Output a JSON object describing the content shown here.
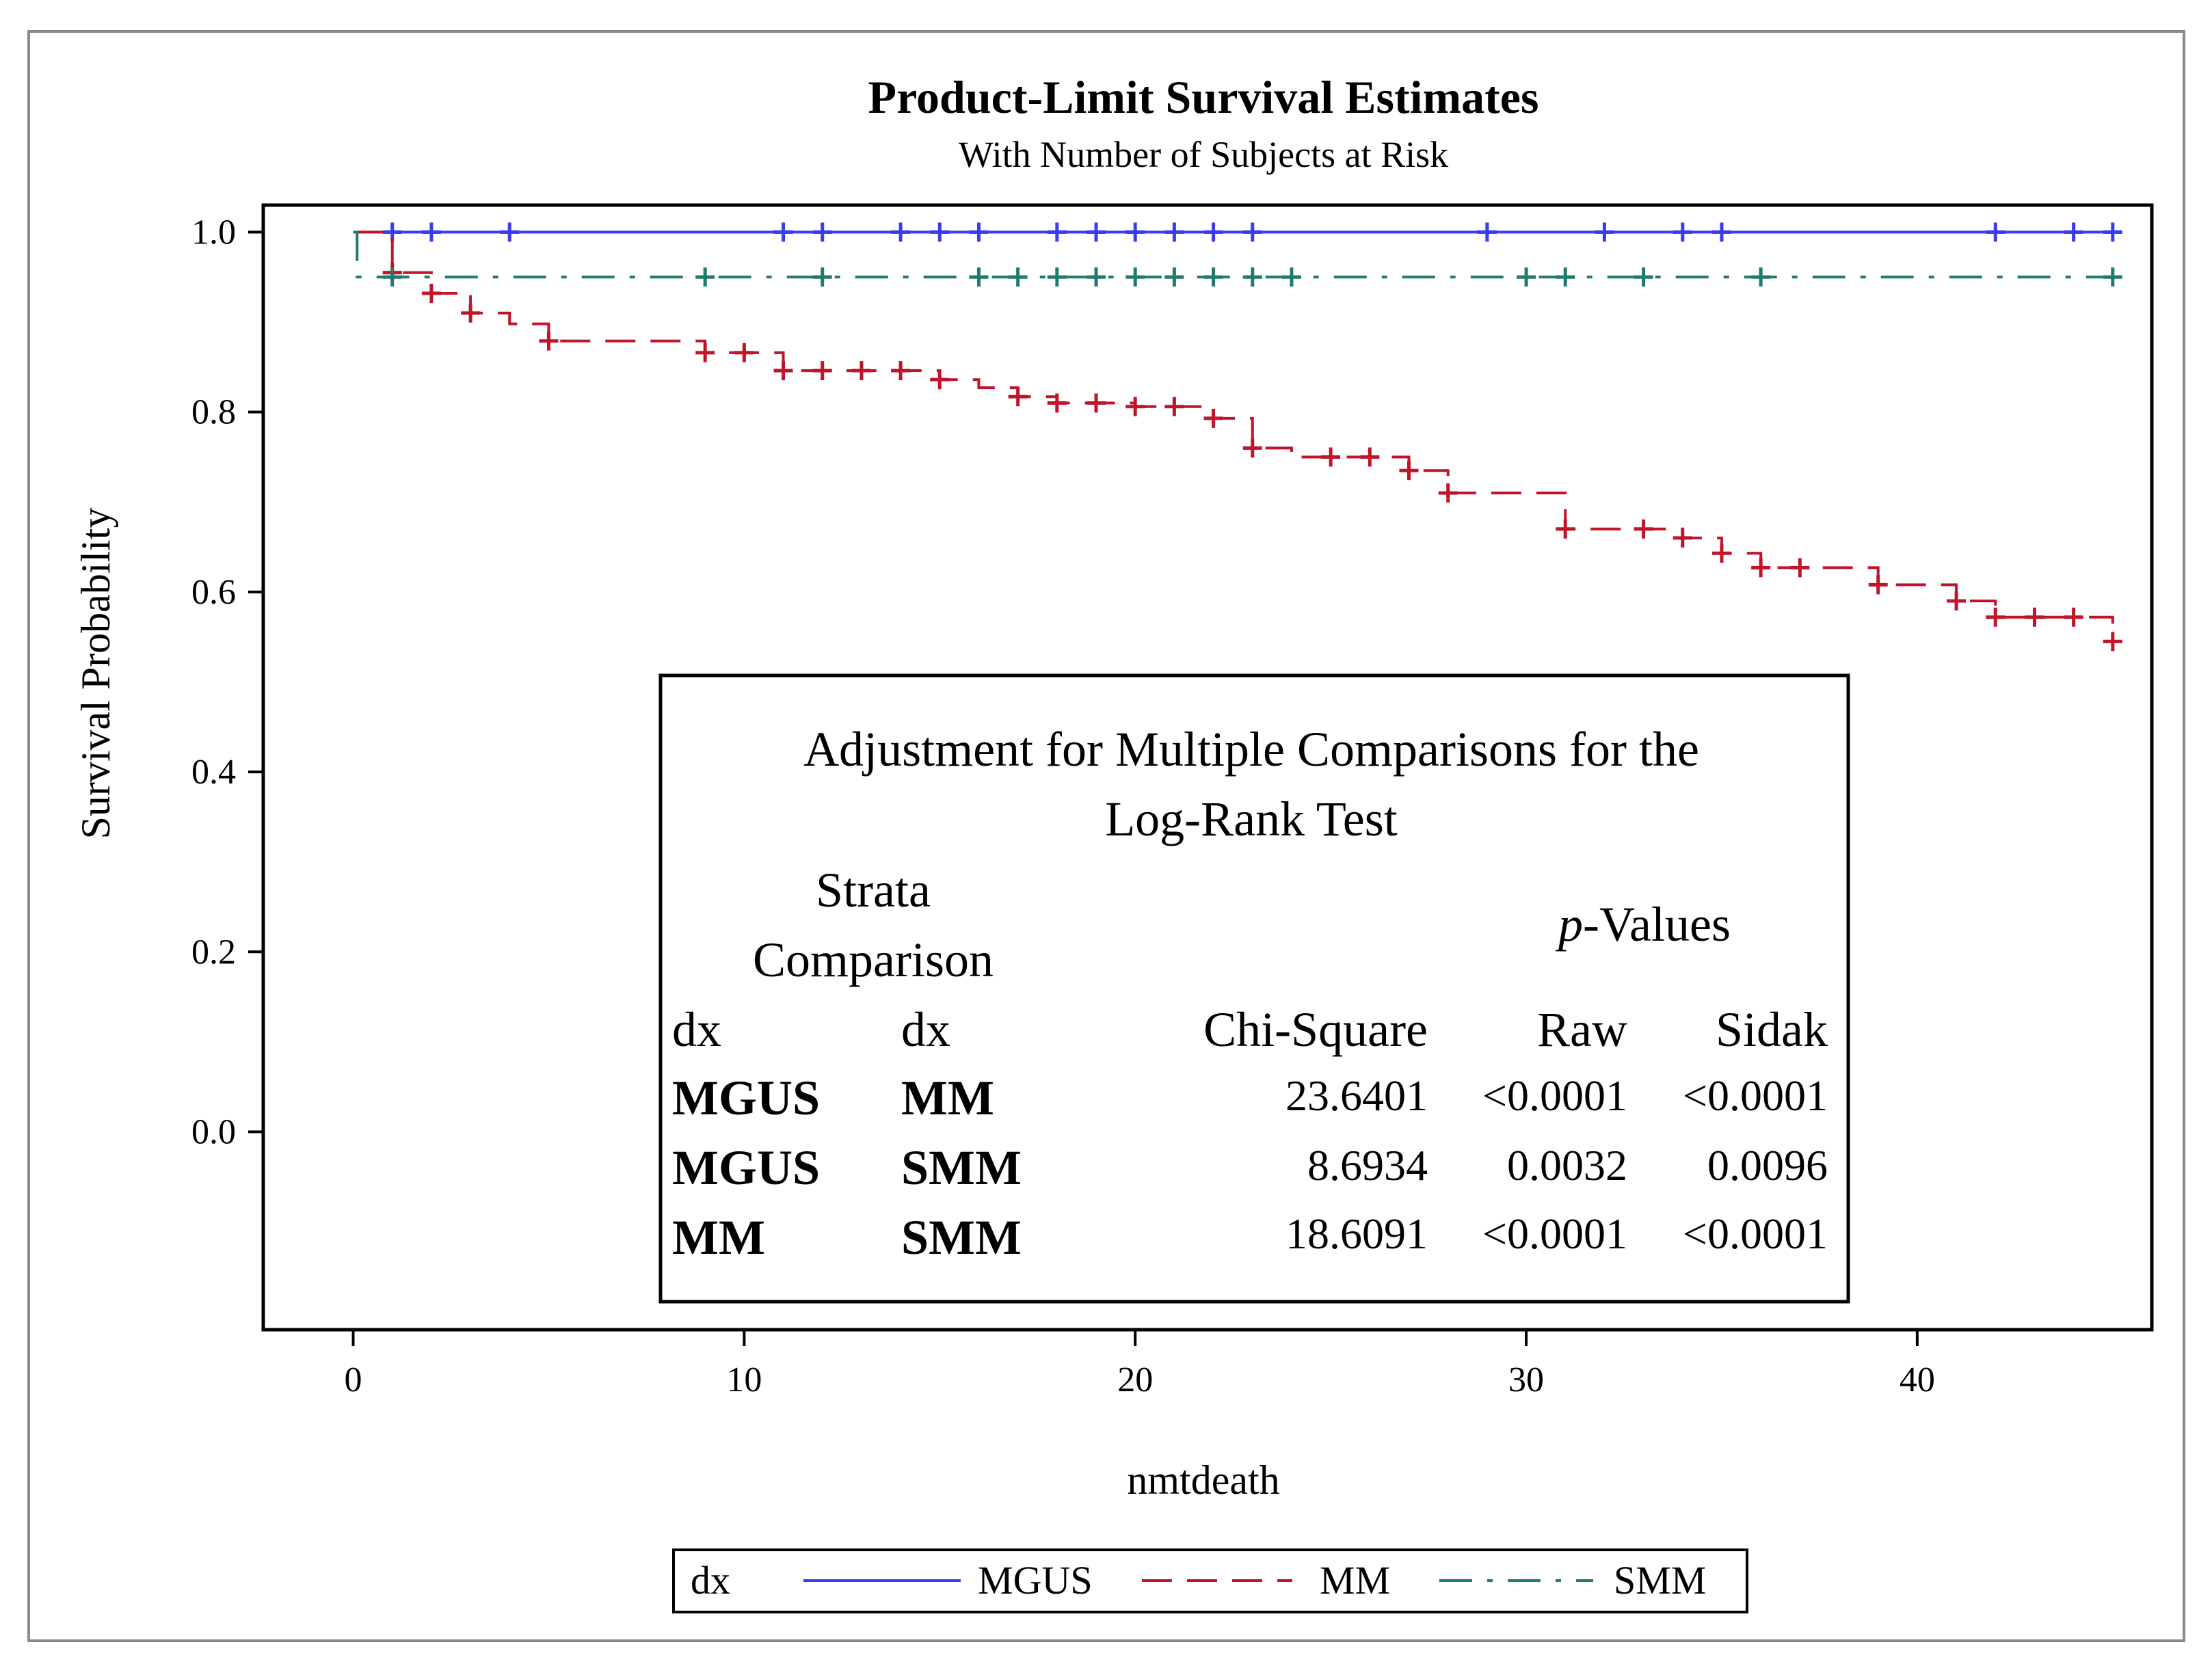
{
  "chart_data": {
    "type": "line",
    "subtype": "step",
    "title": "Product-Limit Survival Estimates",
    "subtitle": "With Number of Subjects at Risk",
    "xlabel": "nmtdeath",
    "ylabel": "Survival Probability",
    "xlim": [
      -2.3,
      46
    ],
    "ylim": [
      -0.22,
      1.03
    ],
    "xticks": [
      0,
      10,
      20,
      30,
      40
    ],
    "yticks": [
      0.0,
      0.2,
      0.4,
      0.6,
      0.8,
      1.0
    ],
    "xtick_labels": [
      "0",
      "10",
      "20",
      "30",
      "40"
    ],
    "ytick_labels": [
      "0.0",
      "0.2",
      "0.4",
      "0.6",
      "0.8",
      "1.0"
    ],
    "grid": false,
    "series": [
      {
        "name": "MGUS",
        "color": "#3b3bf0",
        "dash": "solid",
        "steps": [
          [
            0,
            1.0
          ],
          [
            45,
            1.0
          ]
        ],
        "censor_x": [
          1,
          2,
          4,
          11,
          12,
          14,
          15,
          16,
          18,
          19,
          20,
          21,
          22,
          23,
          29,
          32,
          34,
          35,
          42,
          44,
          45
        ]
      },
      {
        "name": "MM",
        "color": "#c0142a",
        "dash": "dashed",
        "steps": [
          [
            0,
            1.0
          ],
          [
            1,
            0.955
          ],
          [
            2,
            0.932
          ],
          [
            3,
            0.91
          ],
          [
            4,
            0.898
          ],
          [
            5,
            0.879
          ],
          [
            9,
            0.866
          ],
          [
            11,
            0.846
          ],
          [
            15,
            0.836
          ],
          [
            16,
            0.827
          ],
          [
            17,
            0.817
          ],
          [
            18,
            0.81
          ],
          [
            20,
            0.806
          ],
          [
            22,
            0.793
          ],
          [
            23,
            0.76
          ],
          [
            24,
            0.75
          ],
          [
            27,
            0.735
          ],
          [
            28,
            0.71
          ],
          [
            31,
            0.67
          ],
          [
            34,
            0.66
          ],
          [
            35,
            0.643
          ],
          [
            36,
            0.627
          ],
          [
            39,
            0.608
          ],
          [
            41,
            0.59
          ],
          [
            42,
            0.572
          ],
          [
            45,
            0.545
          ]
        ],
        "censor_x": [
          1,
          2,
          3,
          5,
          9,
          10,
          11,
          12,
          13,
          14,
          15,
          17,
          18,
          19,
          20,
          21,
          22,
          23,
          25,
          26,
          27,
          28,
          31,
          33,
          34,
          35,
          36,
          37,
          39,
          41,
          42,
          43,
          44,
          45
        ]
      },
      {
        "name": "SMM",
        "color": "#207a70",
        "dash": "dashdot",
        "steps": [
          [
            0,
            1.0
          ],
          [
            0.1,
            0.95
          ],
          [
            45,
            0.95
          ]
        ],
        "censor_x": [
          1,
          9,
          12,
          16,
          17,
          18,
          19,
          20,
          21,
          22,
          23,
          24,
          30,
          31,
          33,
          36,
          45
        ]
      }
    ],
    "inset_table": {
      "title_line1": "Adjustment  for Multiple Comparisons for the",
      "title_line2": "Log-Rank Test",
      "group_header_line1": "Strata",
      "group_header_line2": "Comparison",
      "pvalues_italic": "p",
      "pvalues_rest": "-Values",
      "columns": [
        "dx",
        "dx",
        "Chi-Square",
        "Raw",
        "Sidak"
      ],
      "rows": [
        [
          "MGUS",
          "MM",
          "23.6401",
          "<0.0001",
          "<0.0001"
        ],
        [
          "MGUS",
          "SMM",
          "8.6934",
          "0.0032",
          "0.0096"
        ],
        [
          "MM",
          "SMM",
          "18.6091",
          "<0.0001",
          "<0.0001"
        ]
      ]
    },
    "legend": {
      "title": "dx",
      "entries": [
        "MGUS",
        "MM",
        "SMM"
      ],
      "position": "bottom"
    }
  }
}
